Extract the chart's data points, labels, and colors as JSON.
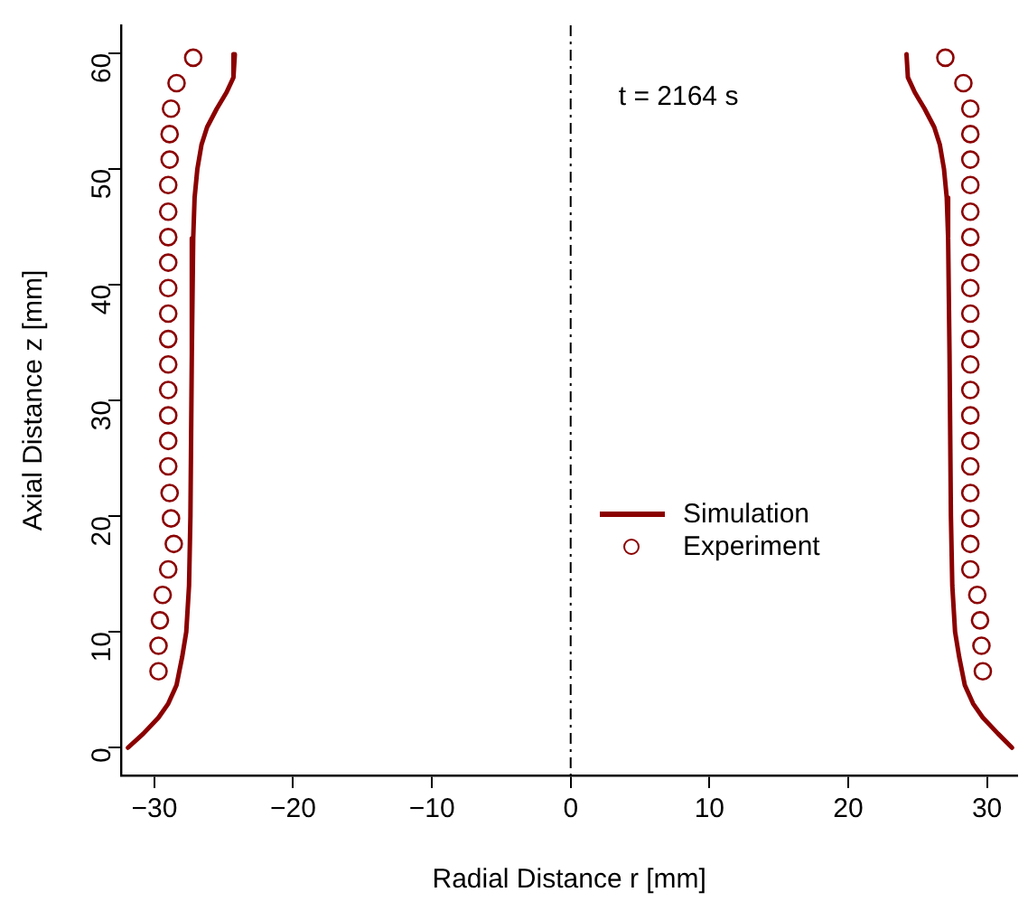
{
  "chart_data": {
    "type": "scatter",
    "xlabel": "Radial Distance r [mm]",
    "ylabel": "Axial Distance z [mm]",
    "annotations": [
      "t = 2164 s"
    ],
    "xlim": [
      -32.4,
      32.2
    ],
    "xticks": [
      {
        "value": -30,
        "label": "−30"
      },
      {
        "value": -20,
        "label": "−20"
      },
      {
        "value": -10,
        "label": "−10"
      },
      0,
      10,
      20,
      30
    ],
    "ylim": [
      -2.4,
      62.4
    ],
    "yticks": [
      0,
      10,
      20,
      30,
      40,
      50,
      60
    ],
    "legend": "right",
    "ref_lines": [
      {
        "axis": "x",
        "value": 0,
        "label": null,
        "color": "#000000",
        "line_style": "dashdot"
      }
    ],
    "series": [
      {
        "name": "Simulation",
        "type": "line",
        "color": "#8b0000",
        "marker": "none",
        "line_style": "solid",
        "x": [
          -24.2,
          -24.3,
          -24.8,
          -25.5,
          -26.2,
          -26.6,
          -26.9,
          -27.1,
          -27.2,
          -27.3,
          -27.4,
          -27.5,
          -27.7,
          -28.0,
          -28.4,
          -29.0,
          -29.7,
          -30.8,
          -31.9
        ],
        "values": [
          59.9,
          57.9,
          56.6,
          55.2,
          53.6,
          52.1,
          50.0,
          47.5,
          44.0,
          34.0,
          20.0,
          14.0,
          10.0,
          7.8,
          5.4,
          3.8,
          2.6,
          1.2,
          0
        ]
      },
      {
        "type": "line",
        "color": "#8b0000",
        "marker": "none",
        "line_style": "solid",
        "x": [
          24.2,
          24.3,
          24.8,
          25.5,
          26.2,
          26.6,
          26.9,
          27.1,
          27.2,
          27.3,
          27.4,
          27.5,
          27.7,
          28.0,
          28.4,
          29.0,
          29.7,
          30.8,
          31.8
        ],
        "values": [
          59.9,
          57.9,
          56.6,
          55.2,
          53.6,
          52.1,
          50.0,
          47.5,
          44.0,
          34.0,
          20.0,
          14.0,
          10.0,
          7.8,
          5.4,
          3.8,
          2.6,
          1.2,
          0
        ]
      },
      {
        "name": "Experiment",
        "color": "#8b0000",
        "marker": "circle",
        "x": [
          -27.2,
          -28.4,
          -28.8,
          -28.9,
          -28.9,
          -29.0,
          -29.0,
          -29.0,
          -29.0,
          -29.0,
          -29.0,
          -29.0,
          -29.0,
          -29.0,
          -29.0,
          -29.0,
          -29.0,
          -28.9,
          -28.8,
          -28.6,
          -29.0,
          -29.4,
          -29.6,
          -29.7,
          -29.7,
          27.0,
          28.3,
          28.8,
          28.8,
          28.8,
          28.8,
          28.8,
          28.8,
          28.8,
          28.8,
          28.8,
          28.8,
          28.8,
          28.8,
          28.8,
          28.8,
          28.8,
          28.8,
          28.8,
          28.8,
          28.8,
          29.3,
          29.5,
          29.6,
          29.7
        ],
        "values": [
          59.6,
          57.4,
          55.2,
          53.0,
          50.8,
          48.6,
          46.3,
          44.1,
          41.9,
          39.7,
          37.5,
          35.3,
          33.1,
          30.9,
          28.7,
          26.5,
          24.3,
          22.0,
          19.8,
          17.6,
          15.4,
          13.2,
          11.0,
          8.8,
          6.6,
          59.6,
          57.4,
          55.2,
          53.0,
          50.8,
          48.6,
          46.3,
          44.1,
          41.9,
          39.7,
          37.5,
          35.3,
          33.1,
          30.9,
          28.7,
          26.5,
          24.3,
          22.0,
          19.8,
          17.6,
          15.4,
          13.2,
          11.0,
          8.8,
          6.6
        ]
      }
    ]
  }
}
